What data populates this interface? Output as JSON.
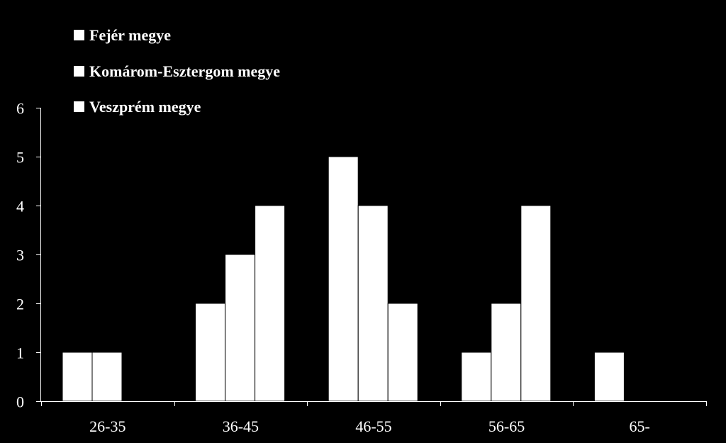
{
  "chart_data": {
    "type": "bar",
    "categories": [
      "26-35",
      "36-45",
      "46-55",
      "56-65",
      "65-"
    ],
    "series": [
      {
        "name": "Fejér megye",
        "values": [
          1,
          2,
          5,
          1,
          1
        ]
      },
      {
        "name": "Komárom-Esztergom megye",
        "values": [
          1,
          3,
          4,
          2,
          0
        ]
      },
      {
        "name": "Veszprém megye",
        "values": [
          0,
          4,
          2,
          4,
          0
        ]
      }
    ],
    "title": "",
    "xlabel": "",
    "ylabel": "",
    "ylim": [
      0,
      6
    ],
    "yticks": [
      "0",
      "1",
      "2",
      "3",
      "4",
      "5",
      "6"
    ],
    "grid": false,
    "legend_position": "top-left",
    "colors": {
      "background": "#000000",
      "bars": "#ffffff",
      "axes": "#ffffff",
      "text": "#ffffff"
    }
  }
}
